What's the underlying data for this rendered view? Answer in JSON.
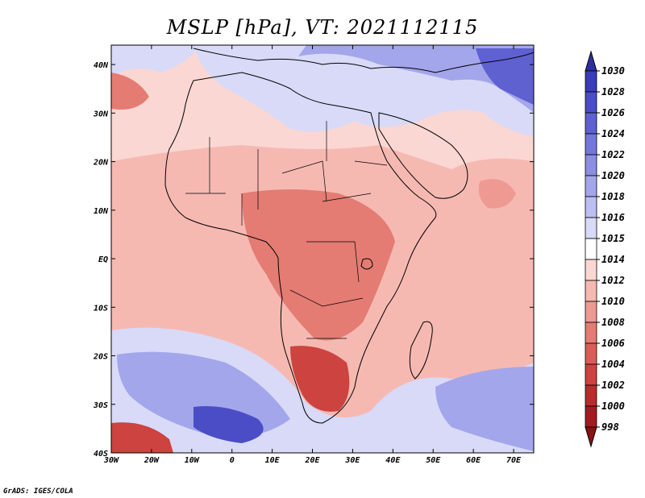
{
  "title": "MSLP [hPa], VT: 2021112115",
  "credit": "GrADS: IGES/COLA",
  "map": {
    "lon_range": [
      -30,
      75
    ],
    "lat_range": [
      -40,
      44
    ],
    "lon_ticks": [
      {
        "value": -30,
        "label": "30W"
      },
      {
        "value": -20,
        "label": "20W"
      },
      {
        "value": -10,
        "label": "10W"
      },
      {
        "value": 0,
        "label": "0"
      },
      {
        "value": 10,
        "label": "10E"
      },
      {
        "value": 20,
        "label": "20E"
      },
      {
        "value": 30,
        "label": "30E"
      },
      {
        "value": 40,
        "label": "40E"
      },
      {
        "value": 50,
        "label": "50E"
      },
      {
        "value": 60,
        "label": "60E"
      },
      {
        "value": 70,
        "label": "70E"
      }
    ],
    "lat_ticks": [
      {
        "value": 40,
        "label": "40N"
      },
      {
        "value": 30,
        "label": "30N"
      },
      {
        "value": 20,
        "label": "20N"
      },
      {
        "value": 10,
        "label": "10N"
      },
      {
        "value": 0,
        "label": "EQ"
      },
      {
        "value": -10,
        "label": "10S"
      },
      {
        "value": -20,
        "label": "20S"
      },
      {
        "value": -30,
        "label": "30S"
      },
      {
        "value": -40,
        "label": "40S"
      }
    ]
  },
  "colorbar": {
    "levels": [
      "1030",
      "1028",
      "1026",
      "1024",
      "1022",
      "1020",
      "1018",
      "1016",
      "1015",
      "1014",
      "1012",
      "1010",
      "1008",
      "1006",
      "1004",
      "1002",
      "1000",
      "998"
    ],
    "colors": [
      "#2d2fa0",
      "#3b3cb8",
      "#4b4dc6",
      "#5f61d1",
      "#7477da",
      "#8b8ee2",
      "#a3a6ea",
      "#bcbff2",
      "#d8daf8",
      "#ffffff",
      "#fbd7d3",
      "#f6b9b2",
      "#ee9a92",
      "#e47c74",
      "#d95e58",
      "#cc4340",
      "#b92c2c",
      "#a11c20",
      "#8b1016"
    ]
  }
}
